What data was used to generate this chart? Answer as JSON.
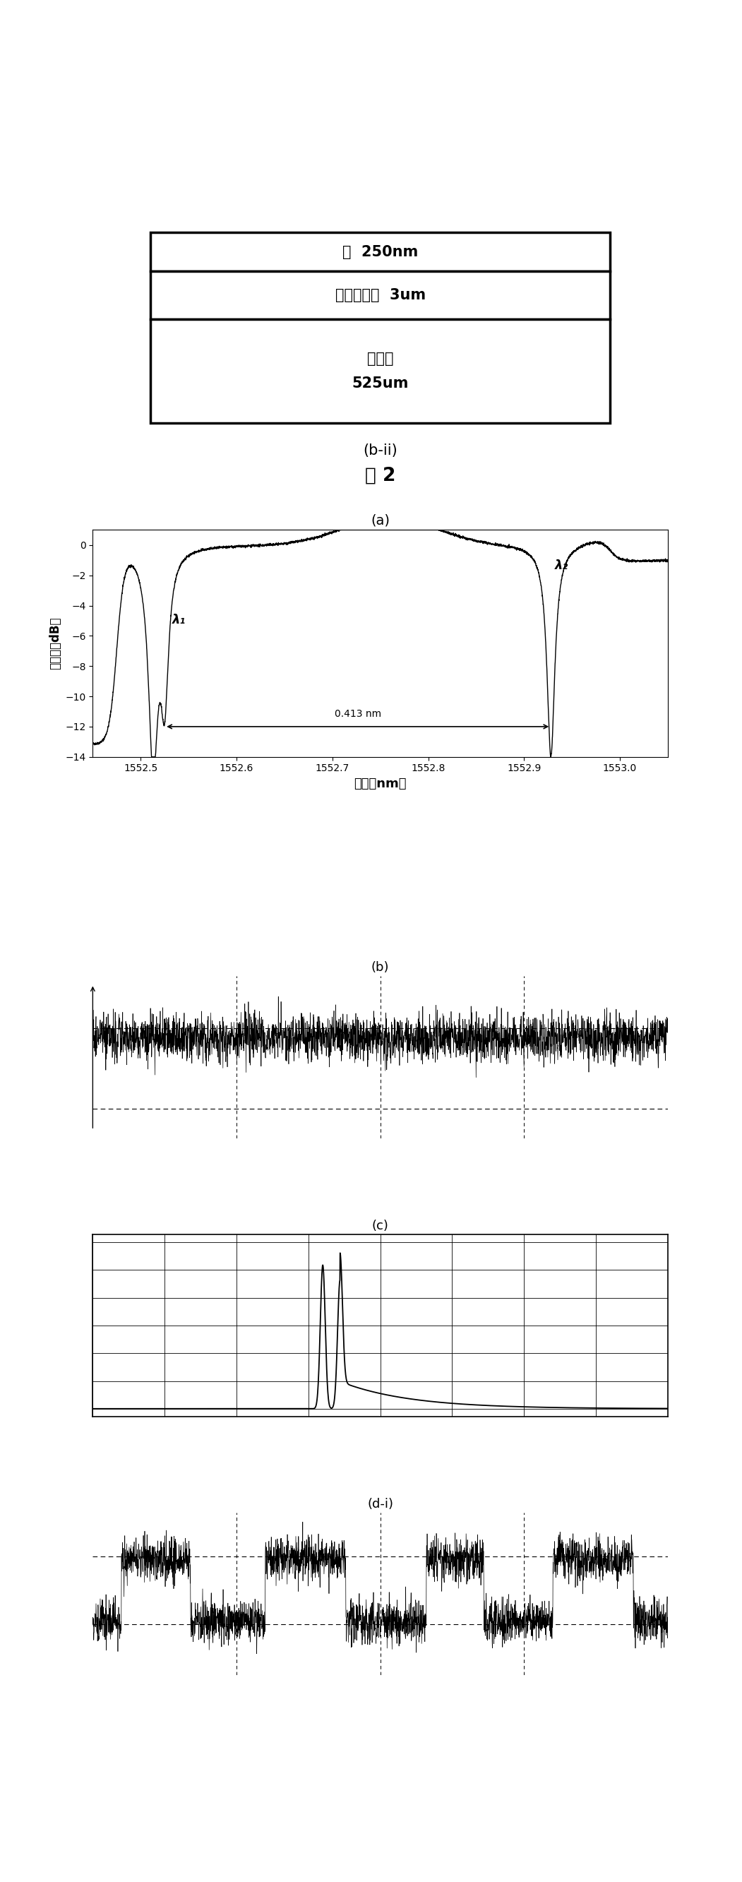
{
  "fig_width": 10.51,
  "fig_height": 26.65,
  "bg_color": "#ffffff",
  "layer_diagram": {
    "label_top": "硅  250nm",
    "label_mid": "二氧化硅层  3um",
    "label_bot_line1": "硅衬底",
    "label_bot_line2": "525um",
    "caption_bii": "(b-ii)",
    "caption_fig2": "图 2"
  },
  "spectrum": {
    "xlabel": "波长（nm）",
    "ylabel": "透射率（dB）",
    "xlim": [
      1552.45,
      1553.05
    ],
    "ylim": [
      -14,
      1
    ],
    "yticks": [
      0,
      -2,
      -4,
      -6,
      -8,
      -10,
      -12,
      -14
    ],
    "xticks": [
      1552.5,
      1552.6,
      1552.7,
      1552.8,
      1552.9,
      1553.0
    ],
    "annotation_fsr": "0.413 nm",
    "annotation_lambda1": "λ₁",
    "annotation_lambda2": "λ₂",
    "caption": "(a)"
  },
  "signal_b": {
    "caption": "(b)"
  },
  "signal_c": {
    "caption": "(c)"
  },
  "signal_d": {
    "caption": "(d-i)"
  }
}
